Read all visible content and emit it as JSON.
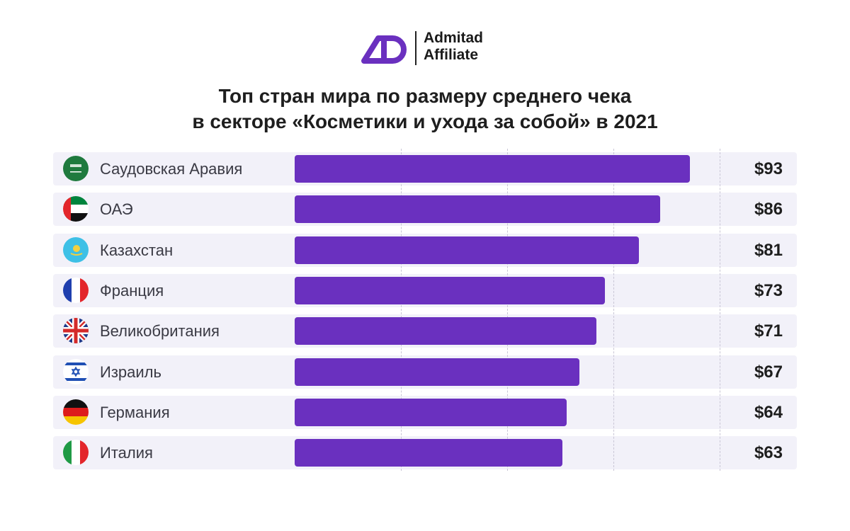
{
  "logo": {
    "line1": "Admitad",
    "line2": "Affiliate",
    "color": "#6a30bf"
  },
  "chart_data": {
    "type": "bar",
    "orientation": "horizontal",
    "title_line1": "Топ стран мира по размеру среднего чека",
    "title_line2": "в секторе «Косметики и ухода за собой» в 2021",
    "categories": [
      "Саудовская Аравия",
      "ОАЭ",
      "Казахстан",
      "Франция",
      "Великобритания",
      "Израиль",
      "Германия",
      "Италия"
    ],
    "values": [
      93,
      86,
      81,
      73,
      71,
      67,
      64,
      63
    ],
    "value_labels": [
      "$93",
      "$86",
      "$81",
      "$73",
      "$71",
      "$67",
      "$64",
      "$63"
    ],
    "flags": [
      "saudi-arabia",
      "uae",
      "kazakhstan",
      "france",
      "uk",
      "israel",
      "germany",
      "italy"
    ],
    "xlim": [
      0,
      100
    ],
    "grid": true,
    "bar_color": "#6a30bf"
  }
}
